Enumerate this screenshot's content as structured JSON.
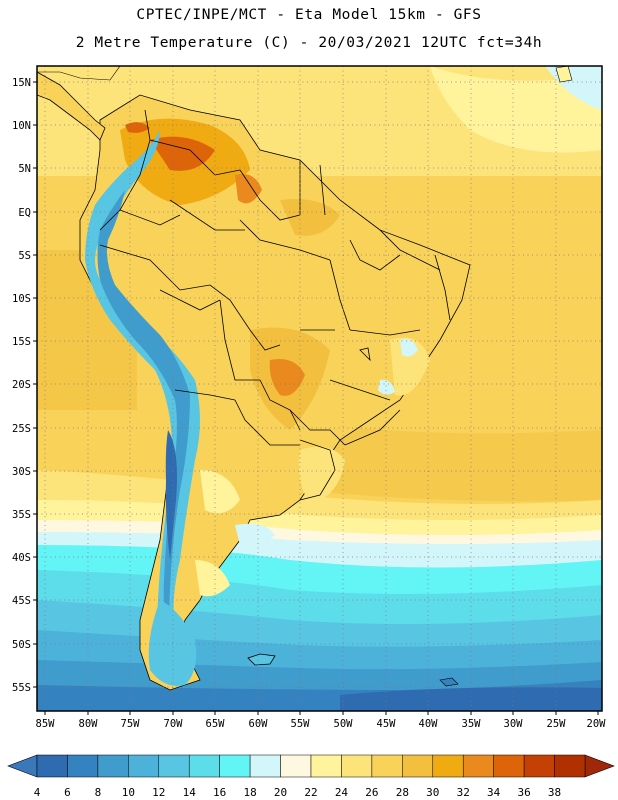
{
  "titles": {
    "line1": "CPTEC/INPE/MCT -  Eta Model 15km - GFS",
    "line2": "2 Metre Temperature (C) - 20/03/2021 12UTC fct=34h"
  },
  "axes": {
    "lat_labels": [
      "15N",
      "10N",
      "5N",
      "EQ",
      "5S",
      "10S",
      "15S",
      "20S",
      "25S",
      "30S",
      "35S",
      "40S",
      "45S",
      "50S",
      "55S"
    ],
    "lon_labels": [
      "85W",
      "80W",
      "75W",
      "70W",
      "65W",
      "60W",
      "55W",
      "50W",
      "45W",
      "40W",
      "35W",
      "30W",
      "25W",
      "20W"
    ]
  },
  "colorbar": {
    "labels": [
      "4",
      "6",
      "8",
      "10",
      "12",
      "14",
      "16",
      "18",
      "20",
      "22",
      "24",
      "26",
      "28",
      "30",
      "32",
      "34",
      "36",
      "38"
    ],
    "colors": [
      "#2e6bb0",
      "#3482c0",
      "#3f9ccd",
      "#4cb2da",
      "#58c6e3",
      "#5ddcea",
      "#63f4f6",
      "#d2f6fa",
      "#fff8e0",
      "#fff39c",
      "#fde47a",
      "#f9d25a",
      "#f2c03e",
      "#f0aa12",
      "#ea8a1e",
      "#de6409",
      "#c44005",
      "#b03000"
    ],
    "low_arrow_color": "#3a78ba",
    "high_arrow_color": "#a02808"
  }
}
